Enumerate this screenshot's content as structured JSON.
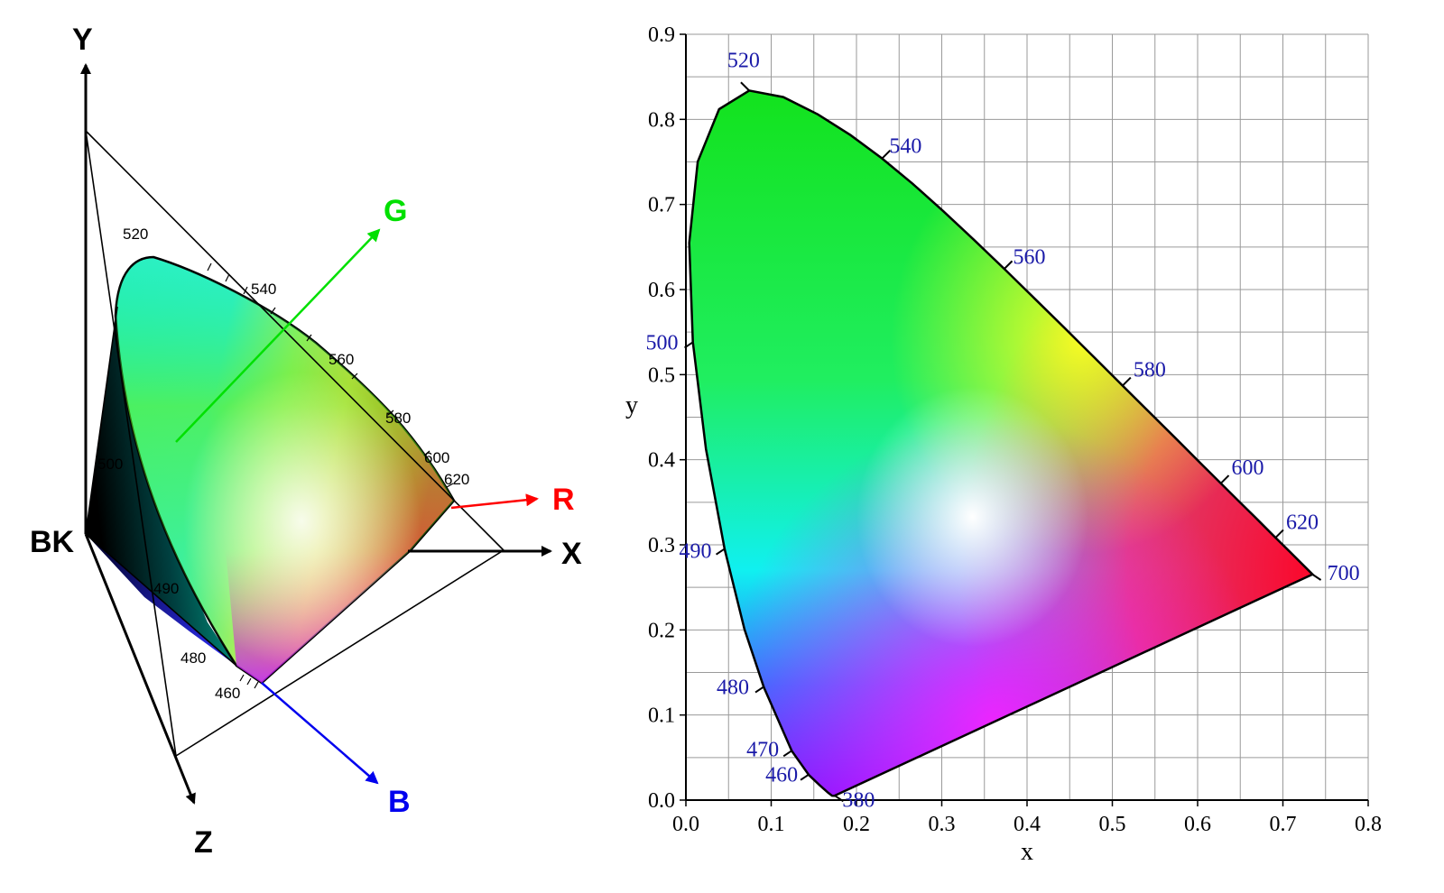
{
  "left_diagram": {
    "axes": {
      "y": "Y",
      "x": "X",
      "z": "Z",
      "origin": "BK",
      "r": "R",
      "g": "G",
      "b": "B"
    },
    "colors": {
      "r": "#ff0000",
      "g": "#00e000",
      "b": "#0000ee"
    },
    "wavelength_labels": [
      "520",
      "540",
      "560",
      "580",
      "600",
      "620",
      "500",
      "490",
      "480",
      "460"
    ]
  },
  "chart_data": {
    "type": "scatter",
    "title": "",
    "xlabel": "x",
    "ylabel": "y",
    "xlim": [
      0.0,
      0.8
    ],
    "ylim": [
      0.0,
      0.9
    ],
    "grid": true,
    "x_ticks": [
      "0.0",
      "0.1",
      "0.2",
      "0.3",
      "0.4",
      "0.5",
      "0.6",
      "0.7",
      "0.8"
    ],
    "y_ticks": [
      "0.0",
      "0.1",
      "0.2",
      "0.3",
      "0.4",
      "0.5",
      "0.6",
      "0.7",
      "0.8",
      "0.9"
    ],
    "wavelength_labels": [
      {
        "nm": "380",
        "x": 0.175,
        "y": 0.005
      },
      {
        "nm": "460",
        "x": 0.144,
        "y": 0.03
      },
      {
        "nm": "470",
        "x": 0.124,
        "y": 0.058
      },
      {
        "nm": "480",
        "x": 0.091,
        "y": 0.133
      },
      {
        "nm": "490",
        "x": 0.045,
        "y": 0.295
      },
      {
        "nm": "500",
        "x": 0.008,
        "y": 0.538
      },
      {
        "nm": "520",
        "x": 0.074,
        "y": 0.834
      },
      {
        "nm": "540",
        "x": 0.23,
        "y": 0.754
      },
      {
        "nm": "560",
        "x": 0.373,
        "y": 0.624
      },
      {
        "nm": "580",
        "x": 0.512,
        "y": 0.487
      },
      {
        "nm": "600",
        "x": 0.627,
        "y": 0.372
      },
      {
        "nm": "620",
        "x": 0.691,
        "y": 0.308
      },
      {
        "nm": "700",
        "x": 0.735,
        "y": 0.265
      }
    ]
  }
}
